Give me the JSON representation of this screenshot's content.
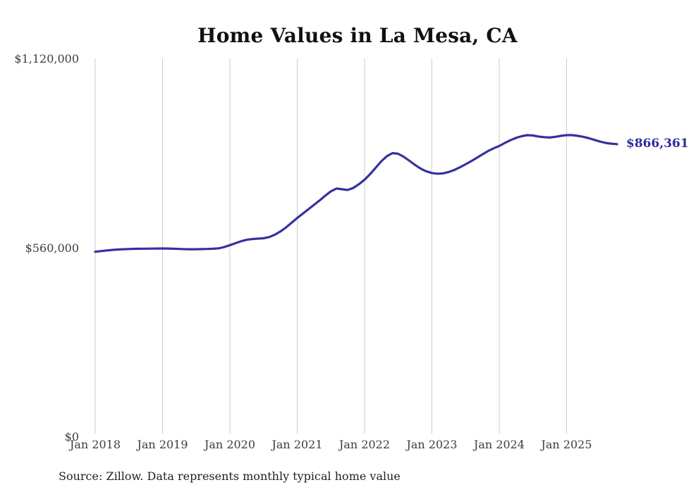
{
  "title": "Home Values in La Mesa, CA",
  "source_note": "Source: Zillow. Data represents monthly typical home value",
  "end_label": "$866,361",
  "colors": {
    "line": "#36319f",
    "end_label": "#2d2b9e",
    "grid": "#cccccc",
    "axis_text": "#3d3d3d",
    "title_text": "#111111",
    "source_text": "#222222",
    "background": "#ffffff"
  },
  "y_axis": {
    "ticks": [
      {
        "label": "$1,120,000",
        "value": 1120000
      },
      {
        "label": "$560,000",
        "value": 560000
      },
      {
        "label": "$0",
        "value": 0
      }
    ]
  },
  "x_axis": {
    "ticks": [
      {
        "label": "Jan 2018"
      },
      {
        "label": "Jan 2019"
      },
      {
        "label": "Jan 2020"
      },
      {
        "label": "Jan 2021"
      },
      {
        "label": "Jan 2022"
      },
      {
        "label": "Jan 2023"
      },
      {
        "label": "Jan 2024"
      },
      {
        "label": "Jan 2025"
      }
    ]
  },
  "chart_data": {
    "type": "line",
    "title": "Home Values in La Mesa, CA",
    "xlabel": "",
    "ylabel": "",
    "ylim": [
      0,
      1120000
    ],
    "y_tick_values": [
      0,
      560000,
      1120000
    ],
    "x_tick_labels": [
      "Jan 2018",
      "Jan 2019",
      "Jan 2020",
      "Jan 2021",
      "Jan 2022",
      "Jan 2023",
      "Jan 2024",
      "Jan 2025"
    ],
    "x_range": {
      "start": "2018-01",
      "end": "2025-10",
      "interval": "monthly"
    },
    "grid": "vertical-only",
    "legend": "none",
    "line_color": "#36319f",
    "final_value_annotation": "$866,361",
    "series": [
      {
        "name": "Typical home value (USD)",
        "final_value": 866361,
        "values": [
          548400,
          550100,
          551900,
          553500,
          554800,
          555700,
          556300,
          556800,
          557100,
          557300,
          557500,
          557800,
          558000,
          557700,
          557100,
          556400,
          555900,
          555600,
          555700,
          556100,
          556500,
          557000,
          558400,
          562000,
          567700,
          573600,
          579300,
          583500,
          585900,
          587000,
          588100,
          591600,
          598500,
          608000,
          620000,
          634000,
          648000,
          661000,
          674000,
          687000,
          700000,
          714000,
          727000,
          735000,
          733000,
          731000,
          737000,
          748000,
          761000,
          778000,
          797000,
          816000,
          831000,
          840000,
          838000,
          829000,
          817000,
          805000,
          794000,
          786000,
          781000,
          779000,
          780000,
          784000,
          790000,
          798000,
          807000,
          816000,
          826000,
          836000,
          846000,
          854000,
          861000,
          870000,
          878000,
          885000,
          890000,
          893000,
          892000,
          889000,
          887000,
          886000,
          888000,
          891000,
          893000,
          893000,
          891000,
          888000,
          884000,
          879000,
          874000,
          870000,
          868000,
          866361
        ]
      }
    ]
  }
}
